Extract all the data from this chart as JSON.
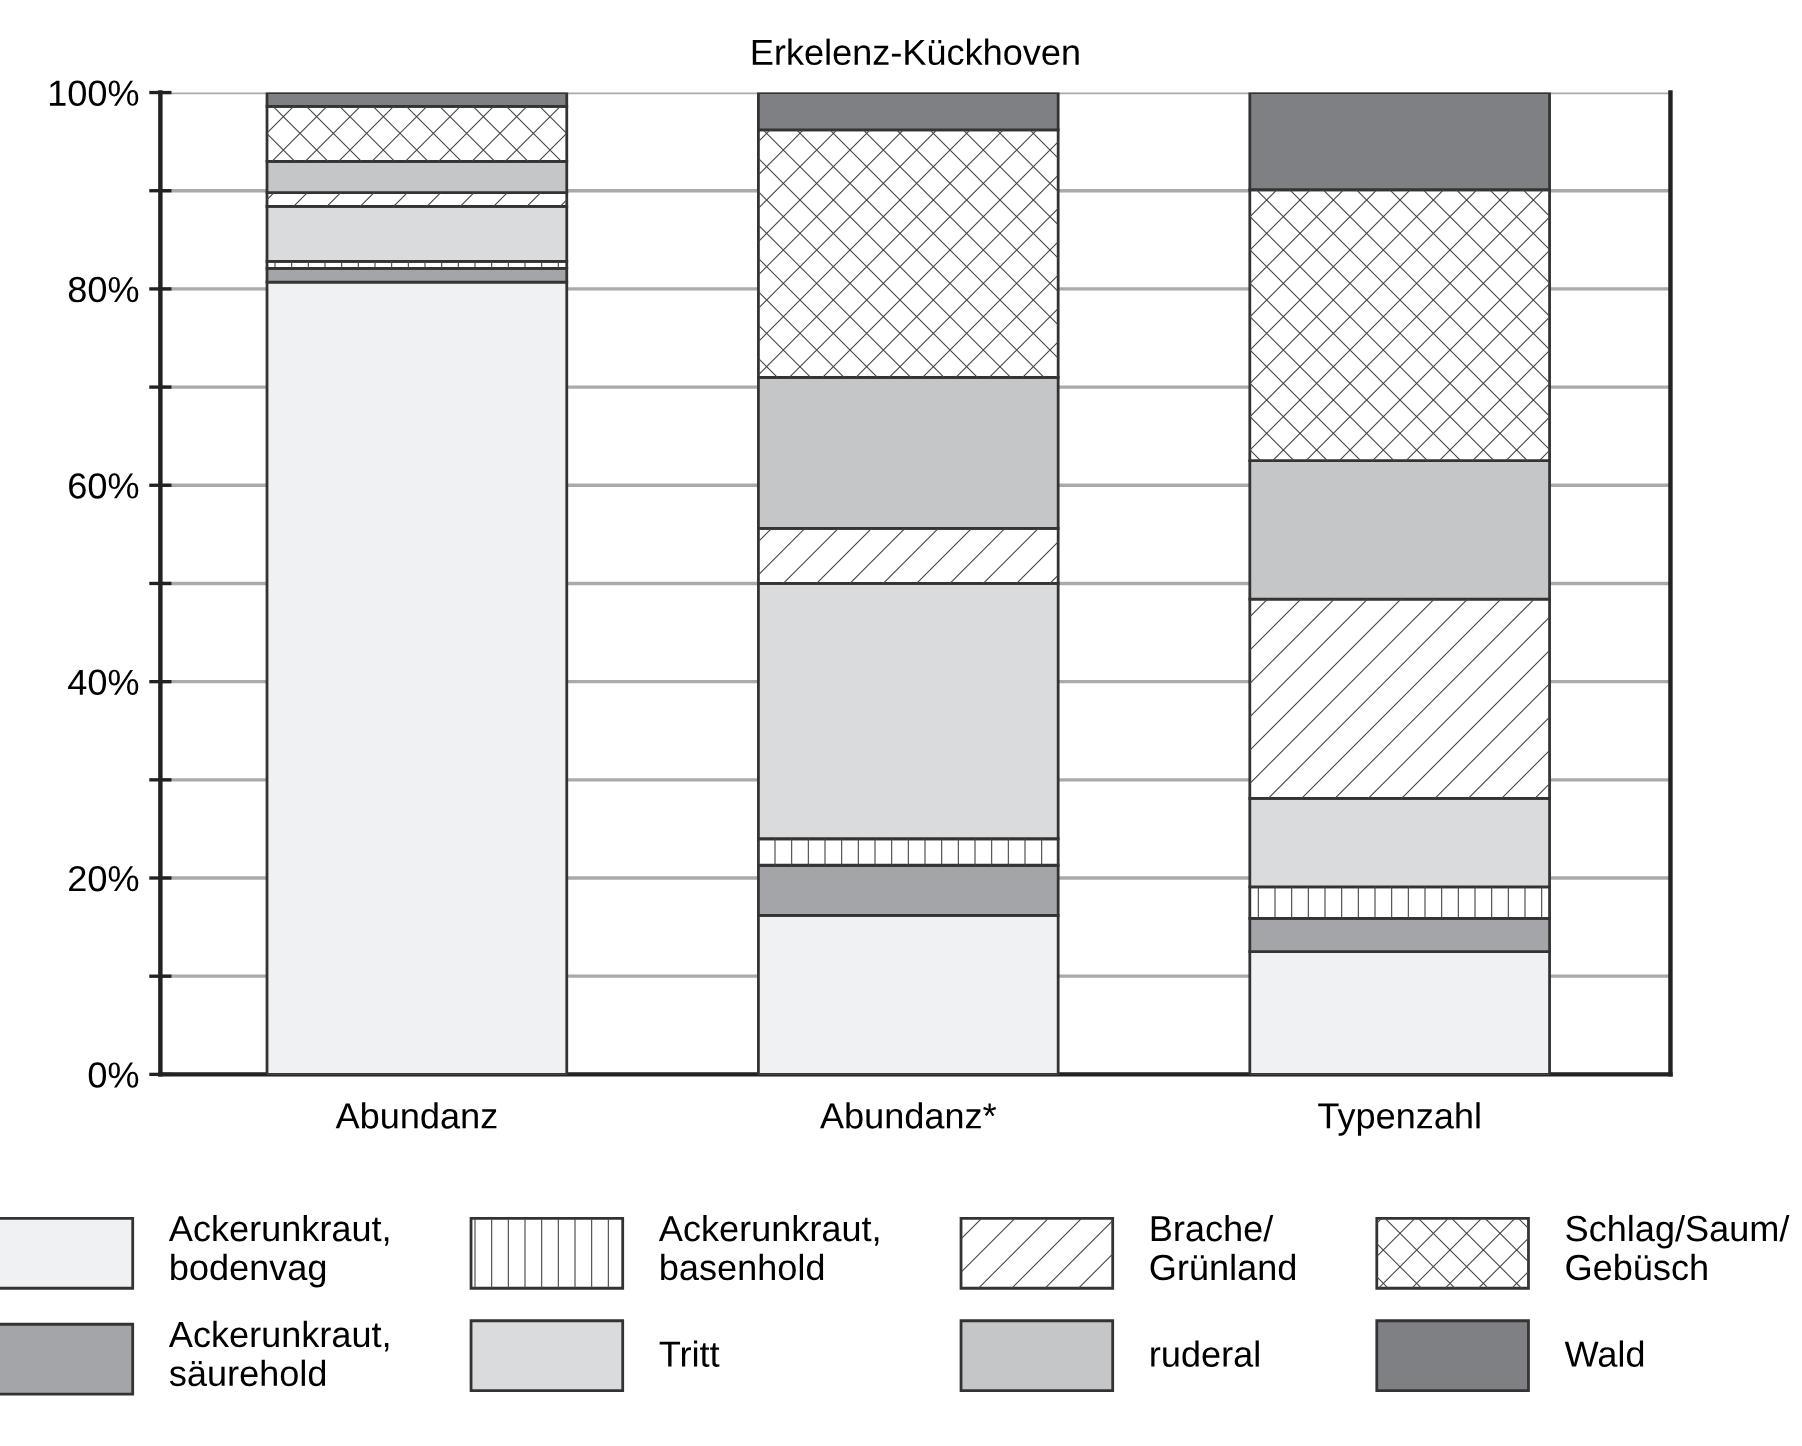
{
  "chart_data": {
    "type": "bar",
    "title": "Erkelenz-Kückhoven",
    "stacked": true,
    "categories": [
      "Abundanz",
      "Abundanz*",
      "Typenzahl"
    ],
    "series": [
      {
        "name": "Ackerunkraut,\nbodenvag",
        "color": "#f0f1f3",
        "values": [
          80.7,
          16.2,
          12.5
        ]
      },
      {
        "name": "Ackerunkraut,\nsäurehold",
        "color": "#a4a5a8",
        "values": [
          1.4,
          5.1,
          3.4
        ]
      },
      {
        "name": "Ackerunkraut,\nbasenhold",
        "color": "#ffffff",
        "values": [
          0.7,
          2.7,
          3.2
        ]
      },
      {
        "name": "Tritt",
        "color": "#dadbdd",
        "values": [
          5.6,
          26.0,
          9.0
        ]
      },
      {
        "name": "Brache/\nGrünland",
        "color": "#ffffff",
        "values": [
          1.4,
          5.6,
          20.3
        ]
      },
      {
        "name": "ruderal",
        "color": "#c5c6c8",
        "values": [
          3.2,
          15.4,
          14.1
        ]
      },
      {
        "name": "Schlag/Saum/\nGebüsch",
        "color": "#ffffff",
        "values": [
          5.6,
          25.2,
          27.6
        ]
      },
      {
        "name": "Wald",
        "color": "#7f8083",
        "values": [
          1.4,
          3.8,
          9.9
        ]
      }
    ],
    "ylim": [
      0,
      100
    ],
    "yticks": [
      {
        "value": 0,
        "label": "0%"
      },
      {
        "value": 10,
        "label": null
      },
      {
        "value": 20,
        "label": "20%"
      },
      {
        "value": 30,
        "label": null
      },
      {
        "value": 40,
        "label": "40%"
      },
      {
        "value": 50,
        "label": null
      },
      {
        "value": 60,
        "label": "60%"
      },
      {
        "value": 70,
        "label": null
      },
      {
        "value": 80,
        "label": "80%"
      },
      {
        "value": 90,
        "label": null
      },
      {
        "value": 100,
        "label": "100%"
      }
    ],
    "grid": "y",
    "legend": "bottom"
  }
}
